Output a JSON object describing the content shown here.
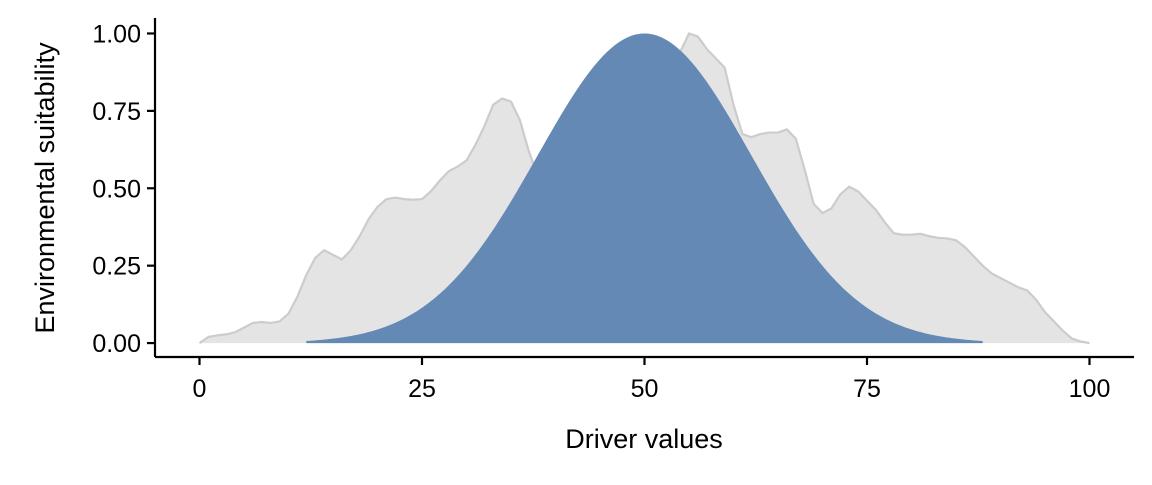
{
  "chart_data": {
    "type": "area",
    "xlabel": "Driver values",
    "ylabel": "Environmental suitability",
    "xlim": [
      -5,
      105
    ],
    "ylim": [
      -0.045,
      1.05
    ],
    "x_ticks": [
      0,
      25,
      50,
      75,
      100
    ],
    "x_tick_labels": [
      "0",
      "25",
      "50",
      "75",
      "100"
    ],
    "y_ticks": [
      0,
      0.25,
      0.5,
      0.75,
      1.0
    ],
    "y_tick_labels": [
      "0.00",
      "0.25",
      "0.50",
      "0.75",
      "1.00"
    ],
    "grid": false,
    "legend": "none",
    "series": [
      {
        "kind": "density-area",
        "color_fill": "#e4e4e4",
        "color_line": "#cccccc",
        "x": [
          0,
          1,
          2,
          3,
          4,
          5,
          6,
          7,
          8,
          9,
          10,
          11,
          12,
          13,
          14,
          15,
          16,
          17,
          18,
          19,
          20,
          21,
          22,
          23,
          24,
          25,
          26,
          27,
          28,
          29,
          30,
          31,
          32,
          33,
          34,
          35,
          36,
          37,
          38,
          39,
          40,
          41,
          42,
          43,
          44,
          45,
          46,
          47,
          48,
          49,
          50,
          51,
          52,
          53,
          54,
          55,
          56,
          57,
          58,
          59,
          60,
          61,
          62,
          63,
          64,
          65,
          66,
          67,
          68,
          69,
          70,
          71,
          72,
          73,
          74,
          75,
          76,
          77,
          78,
          79,
          80,
          81,
          82,
          83,
          84,
          85,
          86,
          87,
          88,
          89,
          90,
          91,
          92,
          93,
          94,
          95,
          96,
          97,
          98,
          99,
          100
        ],
        "y": [
          0.0,
          0.02,
          0.025,
          0.028,
          0.035,
          0.05,
          0.065,
          0.068,
          0.065,
          0.07,
          0.095,
          0.15,
          0.22,
          0.275,
          0.3,
          0.285,
          0.27,
          0.3,
          0.345,
          0.4,
          0.44,
          0.465,
          0.47,
          0.465,
          0.463,
          0.465,
          0.49,
          0.525,
          0.555,
          0.57,
          0.59,
          0.64,
          0.7,
          0.77,
          0.79,
          0.78,
          0.72,
          0.62,
          0.54,
          0.51,
          0.505,
          0.48,
          0.42,
          0.355,
          0.345,
          0.4,
          0.48,
          0.55,
          0.6,
          0.66,
          0.76,
          0.84,
          0.87,
          0.89,
          0.94,
          1.0,
          0.99,
          0.95,
          0.92,
          0.89,
          0.77,
          0.675,
          0.665,
          0.675,
          0.68,
          0.68,
          0.69,
          0.66,
          0.56,
          0.45,
          0.42,
          0.435,
          0.48,
          0.505,
          0.49,
          0.46,
          0.43,
          0.39,
          0.355,
          0.35,
          0.35,
          0.353,
          0.345,
          0.34,
          0.338,
          0.332,
          0.31,
          0.28,
          0.25,
          0.225,
          0.21,
          0.195,
          0.18,
          0.17,
          0.14,
          0.1,
          0.07,
          0.04,
          0.015,
          0.005,
          0.0
        ]
      },
      {
        "kind": "response-curve",
        "shape": "gaussian",
        "mean": 50,
        "sd": 12,
        "peak": 1.0,
        "x_range": [
          12,
          88
        ],
        "color_fill": "#6589b5"
      }
    ]
  }
}
